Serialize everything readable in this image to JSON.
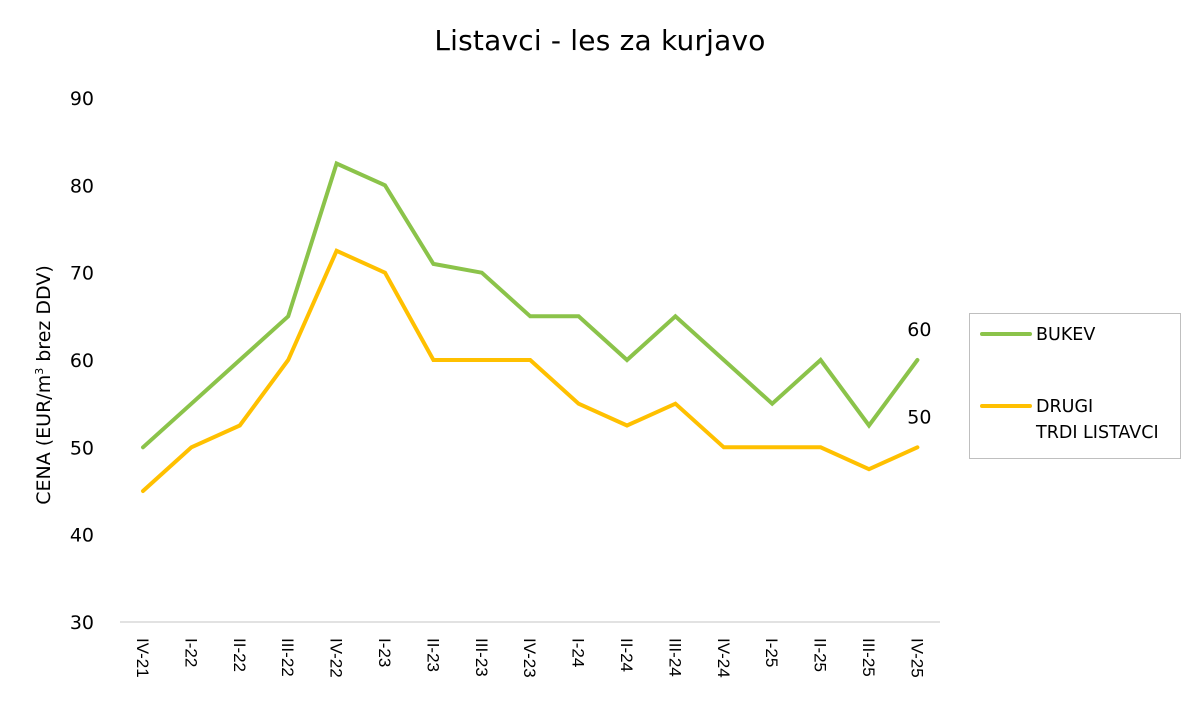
{
  "chart_data": {
    "type": "line",
    "title": "Listavci - les za kurjavo",
    "xlabel": "",
    "ylabel": "CENA (EUR/m³ brez DDV)",
    "ylabel_parts": {
      "before": "CENA (EUR/m",
      "sup": "3",
      "after": " brez DDV)"
    },
    "ylim": [
      30,
      90
    ],
    "yticks": [
      30,
      40,
      50,
      60,
      70,
      80,
      90
    ],
    "grid": false,
    "legend_position": "right",
    "categories": [
      "IV-21",
      "I-22",
      "II-22",
      "III-22",
      "IV-22",
      "I-23",
      "II-23",
      "III-23",
      "IV-23",
      "I-24",
      "II-24",
      "III-24",
      "IV-24",
      "I-25",
      "II-25",
      "III-25",
      "IV-25"
    ],
    "series": [
      {
        "name": "BUKEV",
        "color": "#8bc34a",
        "values": [
          50,
          55,
          60,
          65,
          82.5,
          80,
          71,
          70,
          65,
          65,
          60,
          65,
          60,
          55,
          60,
          52.5,
          60
        ],
        "last_label": "60"
      },
      {
        "name": "DRUGI TRDI LISTAVCI",
        "name_lines": [
          "DRUGI",
          "TRDI LISTAVCI"
        ],
        "color": "#ffc000",
        "values": [
          45,
          50,
          52.5,
          60,
          72.5,
          70,
          60,
          60,
          60,
          55,
          52.5,
          55,
          50,
          50,
          50,
          47.5,
          50
        ],
        "last_label": "50"
      }
    ]
  }
}
